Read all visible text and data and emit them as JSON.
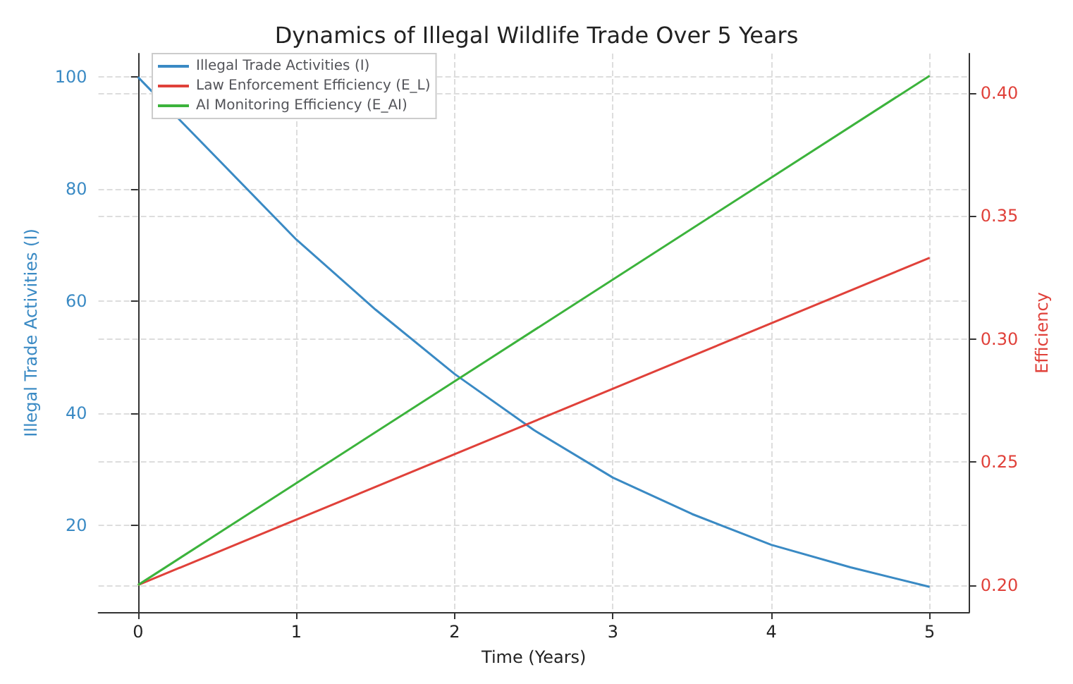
{
  "chart_data": {
    "type": "line",
    "title": "Dynamics of Illegal Wildlife Trade Over 5 Years",
    "xlabel": "Time (Years)",
    "ylabel": "Illegal Trade Activities (I)",
    "y2label": "Efficiency",
    "series": [
      {
        "name": "Illegal Trade Activities (I)",
        "color": "#3a8ac4",
        "x": [
          0,
          0.5,
          1,
          1.5,
          2,
          2.5,
          3,
          3.5,
          4,
          4.5,
          5
        ],
        "values": [
          100,
          85.5,
          71,
          58.5,
          47,
          37,
          28.5,
          22,
          16.5,
          12.5,
          9
        ]
      },
      {
        "name": "Law Enforcement Efficiency (E_L)",
        "color": "#e0413a",
        "axis": "y2",
        "x": [
          0,
          5
        ],
        "values": [
          0.2,
          0.333
        ]
      },
      {
        "name": "AI Monitoring Efficiency (E_AI)",
        "color": "#3cb33c",
        "axis": "y2",
        "x": [
          0,
          5
        ],
        "values": [
          0.2,
          0.407
        ]
      }
    ],
    "xlim": [
      -0.25,
      5.25
    ],
    "xticks": [
      0,
      1,
      2,
      3,
      4,
      5
    ],
    "ylim": [
      4.5,
      104.2
    ],
    "yticks": [
      20,
      40,
      60,
      80,
      100
    ],
    "y2lim": [
      0.189,
      0.416
    ],
    "y2ticks": [
      {
        "value": 0.2,
        "label": "0.20"
      },
      {
        "value": 0.25,
        "label": "0.25"
      },
      {
        "value": 0.3,
        "label": "0.30"
      },
      {
        "value": 0.35,
        "label": "0.35"
      },
      {
        "value": 0.4,
        "label": "0.40"
      }
    ],
    "grid": true,
    "legend": "top left"
  }
}
